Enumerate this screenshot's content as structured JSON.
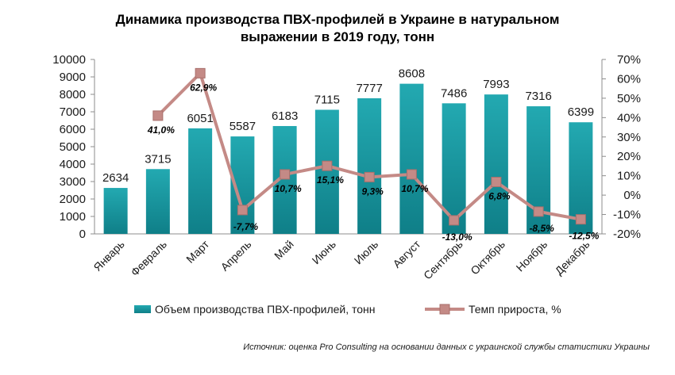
{
  "chart_data": {
    "type": "bar",
    "title": "Динамика производства ПВХ-профилей в Украине в натуральном выражении в 2019 году, тонн",
    "title_lines": [
      "Динамика производства ПВХ-профилей в Украине в натуральном",
      "выражении в 2019 году, тонн"
    ],
    "categories": [
      "Январь",
      "Февраль",
      "Март",
      "Апрель",
      "Май",
      "Июнь",
      "Июль",
      "Август",
      "Сентябрь",
      "Октябрь",
      "Ноябрь",
      "Декабрь"
    ],
    "series": [
      {
        "name": "Объем производства ПВХ-профилей,  тонн",
        "type": "bar",
        "axis": "left",
        "values": [
          2634,
          3715,
          6051,
          5587,
          6183,
          7115,
          7777,
          8608,
          7486,
          7993,
          7316,
          6399
        ],
        "labels": [
          "2634",
          "3715",
          "6051",
          "5587",
          "6183",
          "7115",
          "7777",
          "8608",
          "7486",
          "7993",
          "7316",
          "6399"
        ],
        "color": "#1a9aa3"
      },
      {
        "name": "Темп прироста, %",
        "type": "line",
        "axis": "right",
        "values": [
          null,
          41.0,
          62.9,
          -7.7,
          10.7,
          15.1,
          9.3,
          10.7,
          -13.0,
          6.8,
          -8.5,
          -12.5
        ],
        "labels": [
          null,
          "41,0%",
          "62,9%",
          "-7,7%",
          "10,7%",
          "15,1%",
          "9,3%",
          "10,7%",
          "-13,0%",
          "6,8%",
          "-8,5%",
          "-12,5%"
        ],
        "color": "#c48a86"
      }
    ],
    "y_left": {
      "ylim": [
        0,
        10000
      ],
      "ticks": [
        0,
        1000,
        2000,
        3000,
        4000,
        5000,
        6000,
        7000,
        8000,
        9000,
        10000
      ],
      "tick_labels": [
        "0",
        "1000",
        "2000",
        "3000",
        "4000",
        "5000",
        "6000",
        "7000",
        "8000",
        "9000",
        "10000"
      ]
    },
    "y_right": {
      "ylim": [
        -20,
        70
      ],
      "ticks": [
        -20,
        -10,
        0,
        10,
        20,
        30,
        40,
        50,
        60,
        70
      ],
      "tick_labels": [
        "-20%",
        "-10%",
        "0%",
        "10%",
        "20%",
        "30%",
        "40%",
        "50%",
        "60%",
        "70%"
      ]
    },
    "grid": false,
    "legend_position": "bottom",
    "source": "Источник: оценка Pro Consulting на основании данных с украинской службы статистики Украины"
  }
}
